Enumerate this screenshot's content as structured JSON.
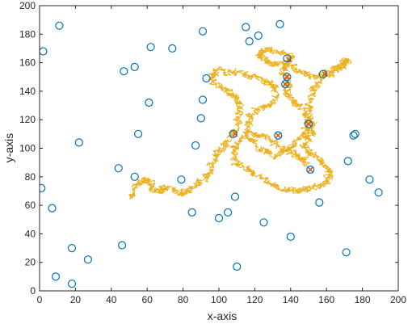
{
  "chart_data": {
    "type": "scatter",
    "title": "",
    "xlabel": "x-axis",
    "ylabel": "y-axis",
    "xlim": [
      0,
      200
    ],
    "ylim": [
      0,
      200
    ],
    "xticks": [
      0,
      20,
      40,
      60,
      80,
      100,
      120,
      140,
      160,
      180,
      200
    ],
    "yticks": [
      0,
      20,
      40,
      60,
      80,
      100,
      120,
      140,
      160,
      180,
      200
    ],
    "grid": false,
    "legend": "none",
    "colors": {
      "scatter": "#0072BD",
      "walk": "#EDB120",
      "highlight": "#D95319",
      "axes": "#262626"
    },
    "series": [
      {
        "kind": "scatter",
        "points": [
          [
            1,
            72
          ],
          [
            2,
            168
          ],
          [
            7,
            58
          ],
          [
            9,
            10
          ],
          [
            11,
            186
          ],
          [
            18,
            30
          ],
          [
            18,
            5
          ],
          [
            22,
            104
          ],
          [
            27,
            22
          ],
          [
            44,
            86
          ],
          [
            46,
            32
          ],
          [
            47,
            154
          ],
          [
            53,
            157
          ],
          [
            53,
            80
          ],
          [
            55,
            110
          ],
          [
            61,
            132
          ],
          [
            62,
            171
          ],
          [
            74,
            170
          ],
          [
            79,
            78
          ],
          [
            85,
            55
          ],
          [
            87,
            102
          ],
          [
            90,
            121
          ],
          [
            91,
            134
          ],
          [
            91,
            182
          ],
          [
            93,
            149
          ],
          [
            100,
            51
          ],
          [
            105,
            55
          ],
          [
            108,
            110
          ],
          [
            109,
            66
          ],
          [
            110,
            17
          ],
          [
            115,
            185
          ],
          [
            117,
            175
          ],
          [
            122,
            179
          ],
          [
            125,
            48
          ],
          [
            133,
            109
          ],
          [
            134,
            187
          ],
          [
            137,
            145
          ],
          [
            138,
            150
          ],
          [
            138,
            163
          ],
          [
            140,
            38
          ],
          [
            150,
            117
          ],
          [
            151,
            85
          ],
          [
            158,
            152
          ],
          [
            156,
            62
          ],
          [
            171,
            27
          ],
          [
            172,
            91
          ],
          [
            175,
            109
          ],
          [
            176,
            110
          ],
          [
            184,
            78
          ],
          [
            189,
            69
          ]
        ]
      },
      {
        "kind": "random-walk",
        "anchors": [
          [
            50,
            65
          ],
          [
            55,
            75
          ],
          [
            60,
            78
          ],
          [
            65,
            70
          ],
          [
            70,
            72
          ],
          [
            80,
            68
          ],
          [
            88,
            75
          ],
          [
            95,
            82
          ],
          [
            98,
            95
          ],
          [
            105,
            105
          ],
          [
            110,
            118
          ],
          [
            112,
            132
          ],
          [
            105,
            140
          ],
          [
            95,
            148
          ],
          [
            100,
            155
          ],
          [
            112,
            152
          ],
          [
            125,
            148
          ],
          [
            132,
            142
          ],
          [
            128,
            130
          ],
          [
            118,
            125
          ],
          [
            115,
            112
          ],
          [
            122,
            100
          ],
          [
            132,
            95
          ],
          [
            140,
            100
          ],
          [
            148,
            110
          ],
          [
            150,
            118
          ],
          [
            146,
            128
          ],
          [
            140,
            135
          ],
          [
            138,
            145
          ],
          [
            136,
            155
          ],
          [
            140,
            165
          ],
          [
            128,
            170
          ],
          [
            122,
            165
          ],
          [
            128,
            160
          ],
          [
            140,
            158
          ],
          [
            150,
            150
          ],
          [
            160,
            152
          ],
          [
            168,
            158
          ],
          [
            172,
            162
          ],
          [
            160,
            150
          ],
          [
            152,
            140
          ],
          [
            150,
            125
          ],
          [
            152,
            112
          ],
          [
            148,
            100
          ],
          [
            155,
            92
          ],
          [
            162,
            85
          ],
          [
            160,
            75
          ],
          [
            150,
            72
          ],
          [
            140,
            70
          ],
          [
            130,
            75
          ],
          [
            120,
            82
          ],
          [
            110,
            90
          ],
          [
            108,
            100
          ],
          [
            115,
            110
          ],
          [
            125,
            108
          ],
          [
            135,
            100
          ],
          [
            145,
            95
          ],
          [
            150,
            88
          ]
        ]
      },
      {
        "kind": "highlight",
        "points": [
          [
            109,
            110
          ],
          [
            133,
            109
          ],
          [
            137,
            145
          ],
          [
            138,
            150
          ],
          [
            139,
            162
          ],
          [
            150,
            117
          ],
          [
            151,
            85
          ],
          [
            159,
            152
          ]
        ]
      }
    ]
  }
}
